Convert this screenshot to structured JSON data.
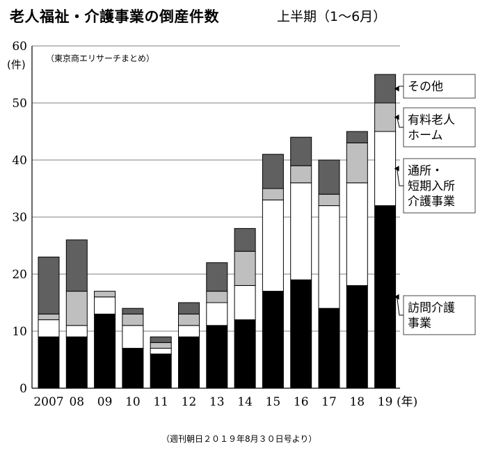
{
  "header": {
    "title": "老人福祉・介護事業の倒産件数",
    "subtitle": "上半期（1～6月）"
  },
  "footer": {
    "source": "（週刊朝日２０１９年8月３０日号より）"
  },
  "chart_data": {
    "type": "bar",
    "stacked": true,
    "note": "（東京商エリサーチまとめ）",
    "y_unit": "(件)",
    "x_unit": "(年)",
    "categories": [
      "2007",
      "08",
      "09",
      "10",
      "11",
      "12",
      "13",
      "14",
      "15",
      "16",
      "17",
      "18",
      "19"
    ],
    "ylim": [
      0,
      60
    ],
    "yticks": [
      0,
      10,
      20,
      30,
      40,
      50,
      60
    ],
    "grid": true,
    "series": [
      {
        "name": "訪問介護事業",
        "color": "#000000",
        "values": [
          9,
          9,
          13,
          7,
          6,
          9,
          11,
          12,
          17,
          19,
          14,
          18,
          32
        ]
      },
      {
        "name": "通所・短期入所介護事業",
        "color": "#ffffff",
        "values": [
          3,
          2,
          3,
          4,
          1,
          2,
          4,
          6,
          16,
          17,
          18,
          18,
          13
        ]
      },
      {
        "name": "有料老人ホーム",
        "color": "#bfbfbf",
        "values": [
          1,
          6,
          1,
          2,
          1,
          2,
          2,
          6,
          2,
          3,
          2,
          7,
          5
        ]
      },
      {
        "name": "その他",
        "color": "#606060",
        "values": [
          10,
          9,
          0,
          1,
          1,
          2,
          5,
          4,
          6,
          5,
          6,
          2,
          5
        ]
      }
    ],
    "legend": [
      {
        "lines": [
          "その他"
        ]
      },
      {
        "lines": [
          "有料老人",
          "ホーム"
        ]
      },
      {
        "lines": [
          "通所・",
          "短期入所",
          "介護事業"
        ]
      },
      {
        "lines": [
          "訪問介護",
          "事業"
        ]
      }
    ]
  }
}
